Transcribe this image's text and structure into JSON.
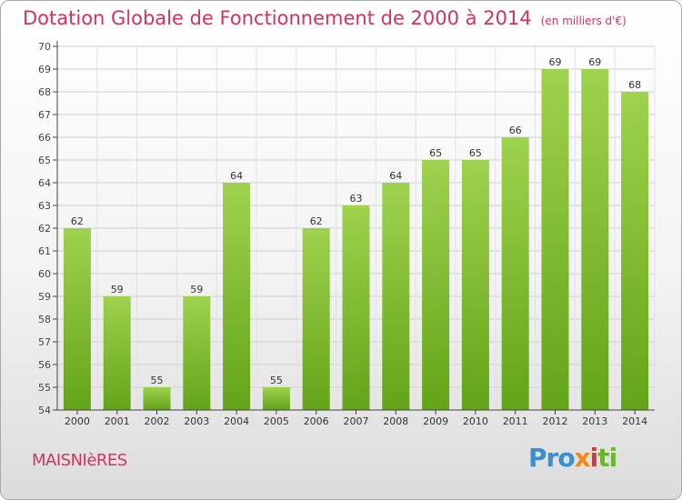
{
  "header": {
    "title": "Dotation Globale de Fonctionnement de 2000 à 2014",
    "unit": "(en milliers d'€)"
  },
  "footer": {
    "commune": "MAISNIèRES",
    "brand": [
      "Pro",
      "x",
      "i",
      "ti"
    ]
  },
  "colors": {
    "title": "#d4335a",
    "bar_top": "#9fd24e",
    "bar_bottom": "#63a418",
    "grid": "#d0d0d0",
    "axis": "#444444"
  },
  "chart_data": {
    "type": "bar",
    "categories": [
      "2000",
      "2001",
      "2002",
      "2003",
      "2004",
      "2005",
      "2006",
      "2007",
      "2008",
      "2009",
      "2010",
      "2011",
      "2012",
      "2013",
      "2014"
    ],
    "values": [
      62,
      59,
      55,
      59,
      64,
      55,
      62,
      63,
      64,
      65,
      65,
      66,
      69,
      69,
      68
    ],
    "ylim": [
      54,
      70
    ],
    "yticks": [
      54,
      55,
      56,
      57,
      58,
      59,
      60,
      61,
      62,
      63,
      64,
      65,
      66,
      67,
      68,
      69,
      70
    ],
    "grid": true,
    "data_labels": true
  }
}
